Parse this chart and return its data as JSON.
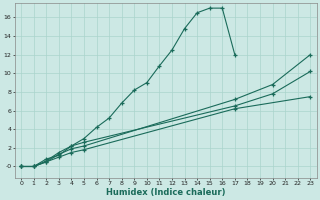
{
  "xlabel": "Humidex (Indice chaleur)",
  "bg_color": "#cce8e4",
  "grid_color": "#aad4cc",
  "line_color": "#1a6b5a",
  "xlim": [
    -0.5,
    23.5
  ],
  "ylim": [
    -1.2,
    17.5
  ],
  "xticks": [
    0,
    1,
    2,
    3,
    4,
    5,
    6,
    7,
    8,
    9,
    10,
    11,
    12,
    13,
    14,
    15,
    16,
    17,
    18,
    19,
    20,
    21,
    22,
    23
  ],
  "yticks": [
    0,
    2,
    4,
    6,
    8,
    10,
    12,
    14,
    16
  ],
  "ytick_labels": [
    "-0",
    "2",
    "4",
    "6",
    "8",
    "10",
    "12",
    "14",
    "16"
  ],
  "line1_x": [
    0,
    1,
    2,
    3,
    4,
    5,
    6,
    7,
    8,
    9,
    10,
    11,
    12,
    13,
    14,
    15,
    16,
    17
  ],
  "line1_y": [
    0,
    0,
    0.8,
    1.2,
    2.2,
    3.0,
    4.2,
    5.2,
    6.8,
    8.2,
    9.0,
    10.8,
    12.5,
    14.8,
    16.5,
    17.0,
    17.0,
    12.0
  ],
  "line2_x": [
    0,
    1,
    2,
    3,
    4,
    5,
    17,
    23
  ],
  "line2_y": [
    0,
    0,
    0.5,
    1.0,
    1.5,
    1.8,
    6.2,
    7.5
  ],
  "line3_x": [
    0,
    1,
    2,
    3,
    4,
    5,
    17,
    20,
    23
  ],
  "line3_y": [
    0,
    0,
    0.5,
    1.3,
    1.9,
    2.2,
    7.2,
    8.8,
    12.0
  ],
  "line4_x": [
    0,
    1,
    2,
    3,
    4,
    5,
    17,
    20,
    23
  ],
  "line4_y": [
    0,
    0,
    0.6,
    1.5,
    2.2,
    2.6,
    6.5,
    7.8,
    10.2
  ]
}
